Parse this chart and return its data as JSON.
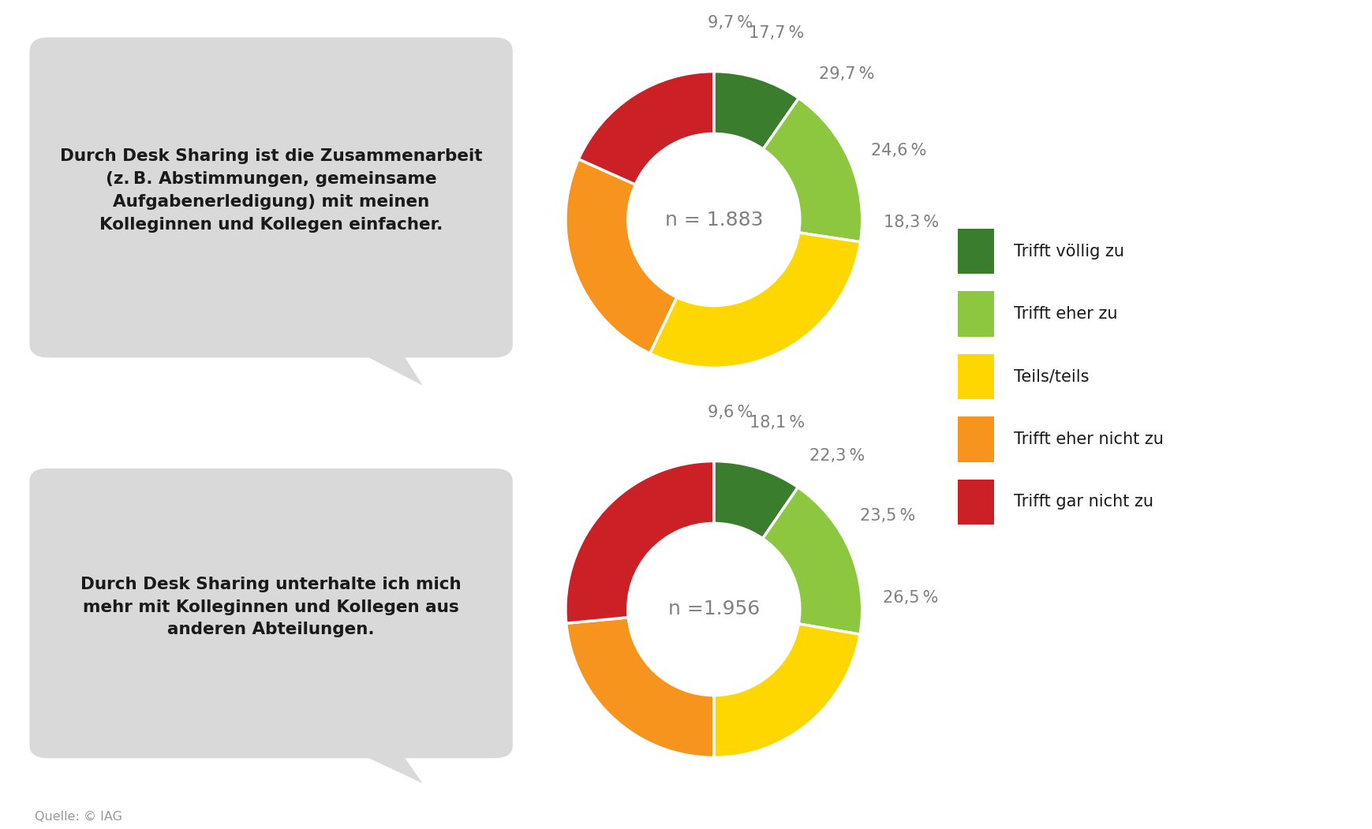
{
  "chart1": {
    "values": [
      9.7,
      17.7,
      29.7,
      24.6,
      18.3
    ],
    "labels": [
      "9,7 %",
      "17,7 %",
      "29,7 %",
      "24,6 %",
      "18,3 %"
    ],
    "center_text": "n = 1.883",
    "question": "Durch Desk Sharing ist die Zusammenarbeit\n(z. B. Abstimmungen, gemeinsame\nAufgabenerledigung) mit meinen\nKolleginnen und Kollegen einfacher."
  },
  "chart2": {
    "values": [
      9.6,
      18.1,
      22.3,
      23.5,
      26.5
    ],
    "labels": [
      "9,6 %",
      "18,1 %",
      "22,3 %",
      "23,5 %",
      "26,5 %"
    ],
    "center_text": "n =1.956",
    "question": "Durch Desk Sharing unterhalte ich mich\nmehr mit Kolleginnen und Kollegen aus\nanderen Abteilungen."
  },
  "colors": [
    "#3a7d2c",
    "#8dc63f",
    "#ffd700",
    "#f7941d",
    "#cc2027"
  ],
  "legend_labels": [
    "Trifft völlig zu",
    "Trifft eher zu",
    "Teils/teils",
    "Trifft eher nicht zu",
    "Trifft gar nicht zu"
  ],
  "source_text": "Quelle: © IAG",
  "background_color": "#ffffff",
  "label_color": "#7f7f7f",
  "bubble_color": "#d9d9d9",
  "center_text_color": "#808080",
  "text_color": "#1a1a1a"
}
